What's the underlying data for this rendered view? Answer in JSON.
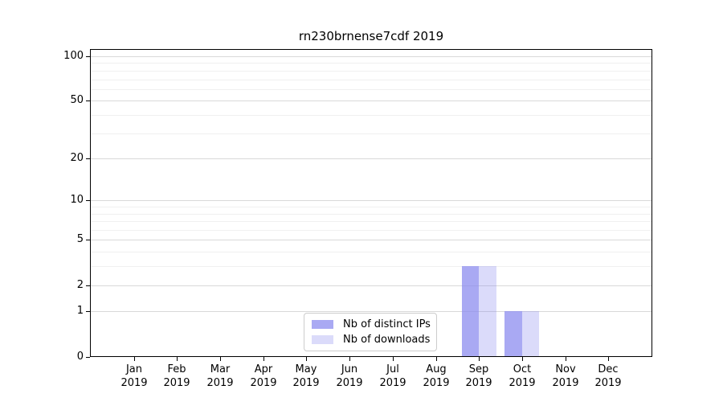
{
  "figure": {
    "title": "rn230brnense7cdf 2019"
  },
  "chart_data": {
    "type": "bar",
    "title": "rn230brnense7cdf 2019",
    "categories": [
      "Jan",
      "Feb",
      "Mar",
      "Apr",
      "May",
      "Jun",
      "Jul",
      "Aug",
      "Sep",
      "Oct",
      "Nov",
      "Dec"
    ],
    "category_year": "2019",
    "series": [
      {
        "name": "Nb of distinct IPs",
        "color": "rgba(136,136,238,0.72)",
        "values": [
          0,
          0,
          0,
          0,
          0,
          0,
          0,
          0,
          3,
          1,
          0,
          0
        ]
      },
      {
        "name": "Nb of downloads",
        "color": "rgba(136,136,238,0.30)",
        "values": [
          0,
          0,
          0,
          0,
          0,
          0,
          0,
          0,
          3,
          1,
          0,
          0
        ]
      }
    ],
    "xlabel": "",
    "ylabel": "",
    "yscale": "log1p",
    "ylim": [
      0,
      112
    ],
    "ytick_values": [
      0,
      1,
      2,
      5,
      10,
      20,
      50,
      100
    ],
    "ytick_labels": [
      "0",
      "1",
      "2",
      "5",
      "10",
      "20",
      "50",
      "100"
    ],
    "minor_gridline_values": [
      3,
      4,
      6,
      7,
      8,
      9,
      30,
      40,
      60,
      70,
      80,
      90
    ],
    "grid": true,
    "legend_position": "lower center",
    "colors": {
      "major_grid": "#d9d9d9",
      "minor_grid": "#f0f0f0",
      "axis": "#000000",
      "legend_border": "#cccccc"
    }
  }
}
